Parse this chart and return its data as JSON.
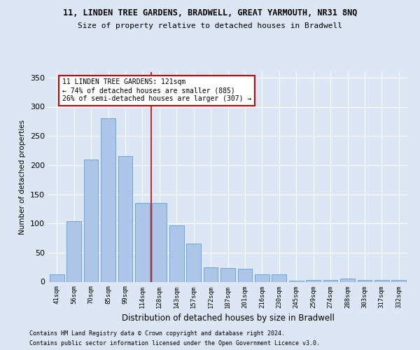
{
  "title1": "11, LINDEN TREE GARDENS, BRADWELL, GREAT YARMOUTH, NR31 8NQ",
  "title2": "Size of property relative to detached houses in Bradwell",
  "xlabel": "Distribution of detached houses by size in Bradwell",
  "ylabel": "Number of detached properties",
  "categories": [
    "41sqm",
    "56sqm",
    "70sqm",
    "85sqm",
    "99sqm",
    "114sqm",
    "128sqm",
    "143sqm",
    "157sqm",
    "172sqm",
    "187sqm",
    "201sqm",
    "216sqm",
    "230sqm",
    "245sqm",
    "259sqm",
    "274sqm",
    "288sqm",
    "303sqm",
    "317sqm",
    "332sqm"
  ],
  "values": [
    13,
    104,
    210,
    280,
    215,
    135,
    135,
    97,
    65,
    25,
    23,
    22,
    13,
    13,
    2,
    3,
    3,
    5,
    3,
    3,
    3
  ],
  "bar_color": "#adc6e8",
  "bar_edge_color": "#5a9fd4",
  "annotation_text": "11 LINDEN TREE GARDENS: 121sqm\n← 74% of detached houses are smaller (885)\n26% of semi-detached houses are larger (307) →",
  "annotation_box_color": "#ffffff",
  "annotation_box_edge": "#cc0000",
  "vline_color": "#cc0000",
  "footer1": "Contains HM Land Registry data © Crown copyright and database right 2024.",
  "footer2": "Contains public sector information licensed under the Open Government Licence v3.0.",
  "background_color": "#dce6f5",
  "plot_bg_color": "#dce6f5",
  "ylim": [
    0,
    360
  ],
  "yticks": [
    0,
    50,
    100,
    150,
    200,
    250,
    300,
    350
  ]
}
